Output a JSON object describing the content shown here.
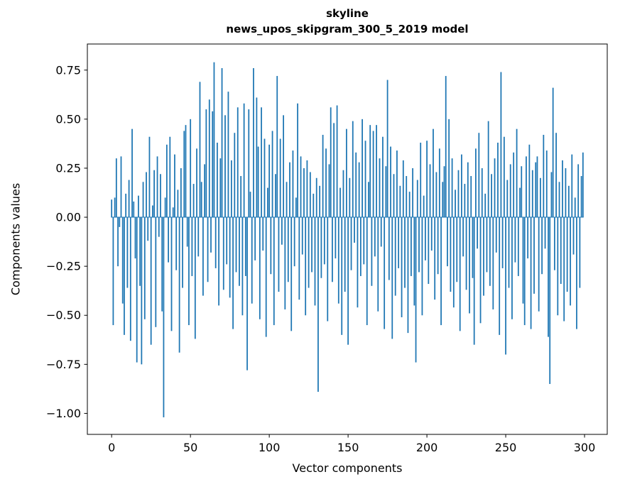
{
  "figure": {
    "title_line1": "skyline",
    "title_line2": "news_upos_skipgram_300_5_2019 model",
    "xlabel": "Vector components",
    "ylabel": "Components values"
  },
  "chart_data": {
    "type": "bar",
    "title": "skyline\nnews_upos_skipgram_300_5_2019 model",
    "xlabel": "Vector components",
    "ylabel": "Components values",
    "bar_color": "#1f77b4",
    "axis_color": "#000000",
    "grid": false,
    "legend": null,
    "xlim": [
      -15.4,
      314.4
    ],
    "ylim": [
      -1.107,
      0.883
    ],
    "xticks": [
      0,
      50,
      100,
      150,
      200,
      250,
      300
    ],
    "xtick_labels": [
      "0",
      "50",
      "100",
      "150",
      "200",
      "250",
      "300"
    ],
    "yticks": [
      -1.0,
      -0.75,
      -0.5,
      -0.25,
      0.0,
      0.25,
      0.5,
      0.75
    ],
    "ytick_labels": [
      "−1.00",
      "−0.75",
      "−0.50",
      "−0.25",
      "0.00",
      "0.25",
      "0.50",
      "0.75"
    ],
    "bar_width": 0.8,
    "values": [
      0.09,
      -0.55,
      0.1,
      0.3,
      -0.25,
      -0.05,
      0.31,
      -0.44,
      -0.6,
      0.12,
      -0.36,
      0.19,
      -0.63,
      0.45,
      0.08,
      -0.21,
      -0.74,
      0.11,
      -0.35,
      -0.75,
      0.18,
      -0.52,
      0.23,
      -0.12,
      0.41,
      -0.65,
      0.06,
      0.24,
      -0.56,
      0.31,
      -0.1,
      0.22,
      -0.48,
      -1.02,
      0.1,
      0.37,
      -0.23,
      0.41,
      -0.58,
      0.05,
      0.32,
      -0.27,
      0.14,
      -0.69,
      0.25,
      -0.36,
      0.44,
      0.47,
      -0.15,
      -0.55,
      0.5,
      -0.3,
      0.17,
      -0.62,
      0.35,
      -0.2,
      0.69,
      0.18,
      -0.4,
      0.27,
      0.55,
      -0.33,
      0.6,
      -0.18,
      0.54,
      0.79,
      -0.26,
      0.38,
      -0.45,
      0.3,
      0.76,
      -0.37,
      0.52,
      -0.24,
      0.64,
      -0.41,
      0.29,
      -0.57,
      0.43,
      -0.28,
      0.56,
      -0.35,
      0.21,
      -0.5,
      0.58,
      -0.3,
      -0.78,
      0.55,
      0.13,
      -0.44,
      0.76,
      -0.22,
      0.61,
      0.36,
      -0.52,
      0.56,
      -0.17,
      0.4,
      -0.61,
      0.15,
      0.37,
      -0.29,
      0.44,
      -0.55,
      0.22,
      0.72,
      -0.38,
      0.4,
      -0.14,
      0.52,
      -0.47,
      0.18,
      -0.33,
      0.28,
      -0.58,
      0.34,
      -0.25,
      0.1,
      0.58,
      -0.42,
      0.31,
      -0.19,
      0.25,
      -0.5,
      0.29,
      -0.36,
      0.23,
      -0.28,
      0.12,
      -0.45,
      0.2,
      -0.89,
      0.16,
      -0.31,
      0.42,
      -0.24,
      0.35,
      -0.53,
      0.27,
      0.56,
      -0.33,
      0.48,
      -0.21,
      0.57,
      -0.44,
      0.15,
      -0.6,
      0.24,
      -0.38,
      0.45,
      -0.65,
      0.2,
      -0.27,
      0.49,
      -0.13,
      0.33,
      -0.46,
      0.28,
      -0.3,
      0.5,
      -0.24,
      0.39,
      -0.55,
      0.18,
      0.47,
      -0.35,
      0.44,
      -0.2,
      0.47,
      -0.48,
      0.3,
      -0.15,
      0.41,
      -0.57,
      0.26,
      0.7,
      -0.32,
      0.36,
      -0.62,
      0.22,
      -0.4,
      0.34,
      -0.26,
      0.16,
      -0.51,
      0.29,
      -0.36,
      0.21,
      -0.59,
      0.13,
      -0.3,
      0.25,
      -0.45,
      -0.74,
      0.19,
      -0.28,
      0.38,
      -0.5,
      0.11,
      -0.22,
      0.39,
      -0.34,
      0.27,
      -0.17,
      0.45,
      -0.42,
      0.23,
      -0.29,
      0.35,
      -0.55,
      0.18,
      0.26,
      0.72,
      -0.25,
      0.5,
      -0.38,
      0.3,
      -0.46,
      0.14,
      -0.33,
      0.24,
      -0.58,
      0.32,
      -0.2,
      0.17,
      -0.37,
      0.28,
      -0.49,
      0.21,
      -0.31,
      -0.65,
      0.35,
      -0.16,
      0.43,
      -0.54,
      0.25,
      -0.4,
      0.12,
      -0.28,
      0.49,
      -0.35,
      0.22,
      -0.47,
      0.3,
      -0.18,
      0.38,
      -0.6,
      0.74,
      -0.26,
      0.41,
      -0.7,
      0.19,
      -0.36,
      0.27,
      -0.52,
      0.33,
      -0.23,
      0.45,
      -0.3,
      0.15,
      0.26,
      -0.44,
      -0.55,
      0.31,
      -0.21,
      0.37,
      -0.57,
      0.24,
      -0.39,
      0.28,
      0.31,
      -0.48,
      0.2,
      -0.29,
      0.42,
      -0.16,
      0.34,
      -0.61,
      -0.85,
      0.23,
      0.66,
      -0.27,
      0.43,
      -0.5,
      0.18,
      -0.34,
      0.29,
      -0.53,
      0.25,
      -0.38,
      0.16,
      -0.45,
      0.32,
      -0.19,
      0.1,
      -0.57,
      0.27,
      -0.36,
      0.21,
      0.33
    ]
  }
}
